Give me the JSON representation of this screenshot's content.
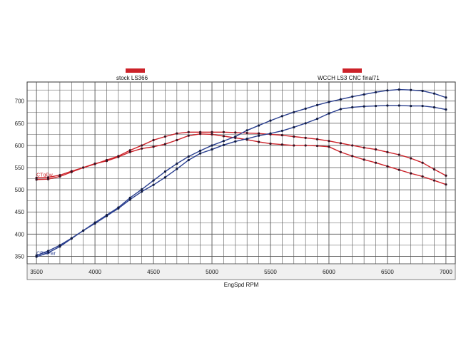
{
  "chart_data": {
    "type": "line",
    "xlabel": "EngSpd  RPM",
    "ylabel": "",
    "xlim": [
      3420,
      7080
    ],
    "ylim": [
      333,
      743
    ],
    "x_ticks": [
      3500,
      4000,
      4500,
      5000,
      5500,
      6000,
      6500,
      7000
    ],
    "y_ticks": [
      350,
      400,
      450,
      500,
      550,
      600,
      650,
      700
    ],
    "grid": true,
    "legend": [
      {
        "label": "stock LS366",
        "color": "#cc2229"
      },
      {
        "label": "WCCH LS3 CNC final71",
        "color": "#cc2229"
      }
    ],
    "series_tags": [
      {
        "label": "CTqFw",
        "color": "#cc2229",
        "x": 3500,
        "y": 530
      },
      {
        "label": "CBHPwr",
        "color": "#2a3f8f",
        "x": 3500,
        "y": 353
      }
    ],
    "x": [
      3500,
      3600,
      3700,
      3800,
      3900,
      4000,
      4100,
      4200,
      4300,
      4400,
      4500,
      4600,
      4700,
      4800,
      4900,
      5000,
      5100,
      5200,
      5300,
      5400,
      5500,
      5600,
      5700,
      5800,
      5900,
      6000,
      6100,
      6200,
      6300,
      6400,
      6500,
      6600,
      6700,
      6800,
      6900,
      7000
    ],
    "series": [
      {
        "color": "#cc2229",
        "values": [
          527,
          528,
          533,
          542,
          550,
          559,
          565,
          574,
          585,
          593,
          597,
          603,
          612,
          622,
          626,
          625,
          621,
          617,
          613,
          608,
          604,
          602,
          600,
          600,
          599,
          597,
          585,
          576,
          568,
          561,
          553,
          545,
          537,
          530,
          521,
          512
        ]
      },
      {
        "color": "#cc2229",
        "values": [
          523,
          524,
          530,
          540,
          550,
          558,
          567,
          576,
          589,
          600,
          612,
          620,
          627,
          630,
          630,
          630,
          630,
          629,
          628,
          627,
          625,
          623,
          620,
          617,
          614,
          610,
          605,
          600,
          595,
          591,
          585,
          579,
          571,
          561,
          546,
          532
        ]
      },
      {
        "color": "#2a3f8f",
        "values": [
          349,
          358,
          372,
          390,
          408,
          424,
          441,
          458,
          478,
          496,
          511,
          528,
          547,
          567,
          582,
          591,
          601,
          609,
          615,
          622,
          627,
          633,
          641,
          650,
          660,
          672,
          682,
          686,
          688,
          689,
          690,
          690,
          689,
          689,
          686,
          681
        ]
      },
      {
        "color": "#2a3f8f",
        "values": [
          352,
          362,
          375,
          391,
          408,
          426,
          443,
          460,
          482,
          501,
          521,
          541,
          559,
          575,
          588,
          600,
          610,
          620,
          634,
          645,
          656,
          666,
          675,
          683,
          691,
          698,
          704,
          710,
          715,
          720,
          724,
          726,
          725,
          723,
          717,
          708
        ]
      }
    ]
  }
}
